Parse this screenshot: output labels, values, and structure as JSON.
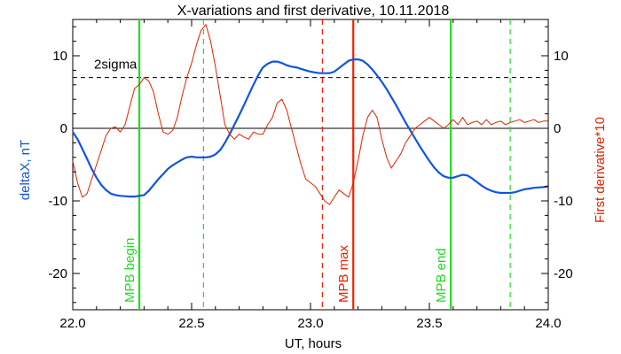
{
  "chart_data": {
    "type": "line",
    "title": "X-variations and first derivative, 10.11.2018",
    "xlabel": "UT, hours",
    "ylabel_left": "deltaX, nT",
    "ylabel_right": "First derivative*10",
    "xlim": [
      22.0,
      24.0
    ],
    "ylim": [
      -25,
      15
    ],
    "x_ticks": [
      22.0,
      22.5,
      23.0,
      23.5,
      24.0
    ],
    "x_tick_labels": [
      "22.0",
      "22.5",
      "23.0",
      "23.5",
      "24.0"
    ],
    "y_ticks": [
      10,
      0,
      -10,
      -20
    ],
    "y_tick_labels": [
      "10",
      "0",
      "-10",
      "-20"
    ],
    "colors": {
      "deltaX": "#1155dd",
      "derivative": "#dd2200",
      "mpb_edges": "#22dd22",
      "mpb_max": "#ee2200",
      "axes": "#000000"
    },
    "zero_line": 0,
    "sigma_level": 7,
    "sigma_label": "2sigma",
    "markers": [
      {
        "x": 22.28,
        "label": "MPB begin",
        "color": "#22dd22",
        "style": "solid"
      },
      {
        "x": 23.18,
        "label": "MPB max",
        "color": "#ee2200",
        "style": "solid"
      },
      {
        "x": 23.59,
        "label": "MPB end",
        "color": "#22dd22",
        "style": "solid"
      }
    ],
    "dashed_lines": [
      {
        "x": 22.55,
        "color": "#22dd22"
      },
      {
        "x": 23.05,
        "color": "#ee2200"
      },
      {
        "x": 23.84,
        "color": "#22dd22"
      }
    ],
    "series": [
      {
        "name": "deltaX",
        "color": "#1155dd",
        "x": [
          22.0,
          22.02,
          22.04,
          22.06,
          22.08,
          22.1,
          22.12,
          22.14,
          22.16,
          22.18,
          22.2,
          22.22,
          22.24,
          22.26,
          22.28,
          22.3,
          22.32,
          22.34,
          22.36,
          22.38,
          22.4,
          22.42,
          22.44,
          22.46,
          22.48,
          22.5,
          22.52,
          22.54,
          22.56,
          22.58,
          22.6,
          22.62,
          22.64,
          22.66,
          22.68,
          22.7,
          22.72,
          22.74,
          22.76,
          22.78,
          22.8,
          22.82,
          22.84,
          22.86,
          22.88,
          22.9,
          22.92,
          22.94,
          22.96,
          22.98,
          23.0,
          23.02,
          23.04,
          23.06,
          23.08,
          23.1,
          23.12,
          23.14,
          23.16,
          23.18,
          23.2,
          23.22,
          23.24,
          23.26,
          23.28,
          23.3,
          23.32,
          23.34,
          23.36,
          23.38,
          23.4,
          23.42,
          23.44,
          23.46,
          23.48,
          23.5,
          23.52,
          23.54,
          23.56,
          23.58,
          23.6,
          23.62,
          23.64,
          23.66,
          23.68,
          23.7,
          23.72,
          23.74,
          23.76,
          23.78,
          23.8,
          23.82,
          23.84,
          23.86,
          23.88,
          23.9,
          23.92,
          23.94,
          23.96,
          23.98,
          24.0
        ],
        "values": [
          -0.5,
          -1.5,
          -2.8,
          -4.2,
          -5.6,
          -6.8,
          -7.8,
          -8.5,
          -9.0,
          -9.2,
          -9.3,
          -9.35,
          -9.4,
          -9.4,
          -9.3,
          -9.2,
          -8.6,
          -7.8,
          -7.0,
          -6.3,
          -5.6,
          -5.1,
          -4.7,
          -4.3,
          -4.0,
          -3.9,
          -4.0,
          -4.0,
          -4.0,
          -3.9,
          -3.6,
          -3.0,
          -2.0,
          -0.8,
          0.5,
          1.8,
          3.2,
          4.6,
          6.0,
          7.3,
          8.4,
          8.9,
          9.2,
          9.2,
          9.0,
          8.7,
          8.5,
          8.4,
          8.2,
          8.0,
          7.8,
          7.7,
          7.6,
          7.6,
          7.6,
          7.8,
          8.3,
          8.8,
          9.3,
          9.5,
          9.5,
          9.3,
          8.8,
          8.1,
          7.3,
          6.4,
          5.4,
          4.3,
          3.2,
          2.0,
          0.8,
          -0.3,
          -1.4,
          -2.5,
          -3.5,
          -4.5,
          -5.4,
          -6.1,
          -6.6,
          -6.8,
          -6.8,
          -6.6,
          -6.4,
          -6.5,
          -6.9,
          -7.4,
          -7.9,
          -8.3,
          -8.6,
          -8.8,
          -8.9,
          -8.9,
          -8.9,
          -8.8,
          -8.6,
          -8.4,
          -8.3,
          -8.2,
          -8.15,
          -8.1,
          -8.0
        ]
      },
      {
        "name": "First derivative*10",
        "color": "#dd2200",
        "x": [
          22.0,
          22.02,
          22.04,
          22.06,
          22.08,
          22.1,
          22.12,
          22.14,
          22.16,
          22.18,
          22.2,
          22.22,
          22.24,
          22.26,
          22.28,
          22.3,
          22.32,
          22.34,
          22.36,
          22.38,
          22.4,
          22.42,
          22.44,
          22.46,
          22.48,
          22.5,
          22.52,
          22.54,
          22.56,
          22.58,
          22.6,
          22.62,
          22.64,
          22.66,
          22.68,
          22.7,
          22.72,
          22.74,
          22.76,
          22.78,
          22.8,
          22.82,
          22.84,
          22.86,
          22.88,
          22.9,
          22.92,
          22.94,
          22.96,
          22.98,
          23.0,
          23.02,
          23.04,
          23.06,
          23.08,
          23.1,
          23.12,
          23.14,
          23.16,
          23.18,
          23.2,
          23.22,
          23.24,
          23.26,
          23.28,
          23.3,
          23.32,
          23.34,
          23.36,
          23.38,
          23.4,
          23.42,
          23.44,
          23.46,
          23.48,
          23.5,
          23.52,
          23.54,
          23.56,
          23.58,
          23.6,
          23.62,
          23.64,
          23.66,
          23.68,
          23.7,
          23.72,
          23.74,
          23.76,
          23.78,
          23.8,
          23.82,
          23.84,
          23.86,
          23.88,
          23.9,
          23.92,
          23.94,
          23.96,
          23.98,
          24.0
        ],
        "values": [
          -4.5,
          -7.5,
          -9.5,
          -9.0,
          -7.0,
          -5.0,
          -3.0,
          -1.0,
          0.0,
          0.2,
          -0.5,
          0.5,
          3.0,
          5.5,
          6.0,
          7.0,
          6.5,
          5.0,
          2.0,
          -0.5,
          -0.8,
          -0.3,
          1.5,
          4.5,
          7.0,
          9.0,
          11.5,
          13.5,
          14.3,
          12.0,
          8.5,
          4.5,
          0.5,
          -0.8,
          -1.5,
          -0.8,
          -1.2,
          -1.5,
          -0.5,
          -0.8,
          -0.8,
          0.5,
          1.5,
          3.5,
          4.0,
          2.5,
          0.0,
          -2.5,
          -5.0,
          -7.0,
          -7.5,
          -8.0,
          -9.0,
          -10.0,
          -10.5,
          -9.5,
          -8.5,
          -9.0,
          -9.5,
          -7.5,
          -4.5,
          -1.0,
          1.5,
          2.5,
          1.5,
          -1.5,
          -4.0,
          -5.5,
          -4.5,
          -3.5,
          -2.0,
          -1.0,
          0.0,
          0.5,
          1.0,
          1.5,
          1.0,
          0.5,
          0.0,
          0.5,
          1.2,
          0.5,
          1.5,
          0.5,
          0.8,
          1.0,
          0.5,
          1.2,
          0.5,
          0.8,
          1.0,
          0.5,
          0.8,
          1.0,
          1.2,
          0.8,
          1.0,
          1.2,
          0.8,
          1.0,
          1.0
        ]
      }
    ]
  }
}
